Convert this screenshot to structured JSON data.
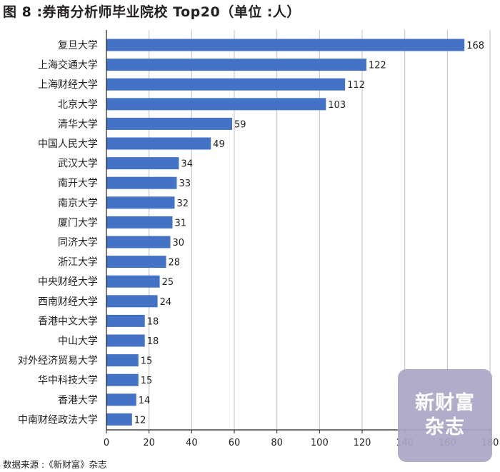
{
  "title": "图 8 :券商分析师毕业院校 Top20（单位 :人）",
  "source": "数据来源 :《新财富》杂志",
  "watermark": "新财富杂志",
  "colors": {
    "bar": "#4472c4",
    "grid": "#bfbfbf",
    "axis": "#231f20",
    "text": "#231f20",
    "watermark": "#aaa6c6"
  },
  "chart_data": {
    "type": "bar",
    "orientation": "horizontal",
    "title": "图 8 :券商分析师毕业院校 Top20（单位 :人）",
    "xlabel": "",
    "ylabel": "",
    "xlim": [
      0,
      180
    ],
    "x_ticks": [
      0,
      20,
      40,
      60,
      80,
      100,
      120,
      140,
      160,
      180
    ],
    "grid": true,
    "categories": [
      "复旦大学",
      "上海交通大学",
      "上海财经大学",
      "北京大学",
      "清华大学",
      "中国人民大学",
      "武汉大学",
      "南开大学",
      "南京大学",
      "厦门大学",
      "同济大学",
      "浙江大学",
      "中央财经大学",
      "西南财经大学",
      "香港中文大学",
      "中山大学",
      "对外经济贸易大学",
      "华中科技大学",
      "香港大学",
      "中南财经政法大学"
    ],
    "values": [
      168,
      122,
      112,
      103,
      59,
      49,
      34,
      33,
      32,
      31,
      30,
      28,
      25,
      24,
      18,
      18,
      15,
      15,
      14,
      12
    ]
  }
}
